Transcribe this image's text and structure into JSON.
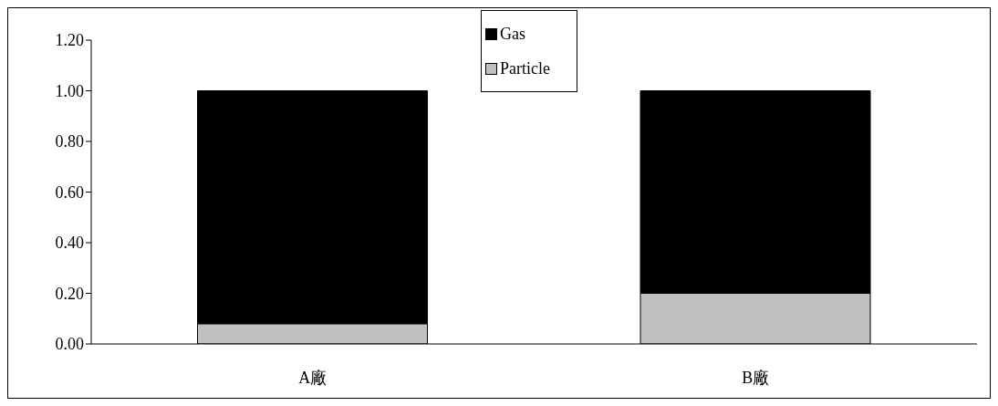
{
  "chart_data": {
    "type": "bar",
    "stacked": true,
    "categories": [
      "A廠",
      "B廠"
    ],
    "series": [
      {
        "name": "Particle",
        "color": "#c0c0c0",
        "values": [
          0.08,
          0.2
        ]
      },
      {
        "name": "Gas",
        "color": "#000000",
        "values": [
          0.92,
          0.8
        ]
      }
    ],
    "ylim": [
      0,
      1.2
    ],
    "yticks": [
      {
        "value": 0,
        "label": "0.00"
      },
      {
        "value": 0.2,
        "label": "0.20"
      },
      {
        "value": 0.4,
        "label": "0.40"
      },
      {
        "value": 0.6,
        "label": "0.60"
      },
      {
        "value": 0.8,
        "label": "0.80"
      },
      {
        "value": 1,
        "label": "1.00"
      },
      {
        "value": 1.2,
        "label": "1.20"
      }
    ],
    "legend": "top",
    "grid": false
  }
}
